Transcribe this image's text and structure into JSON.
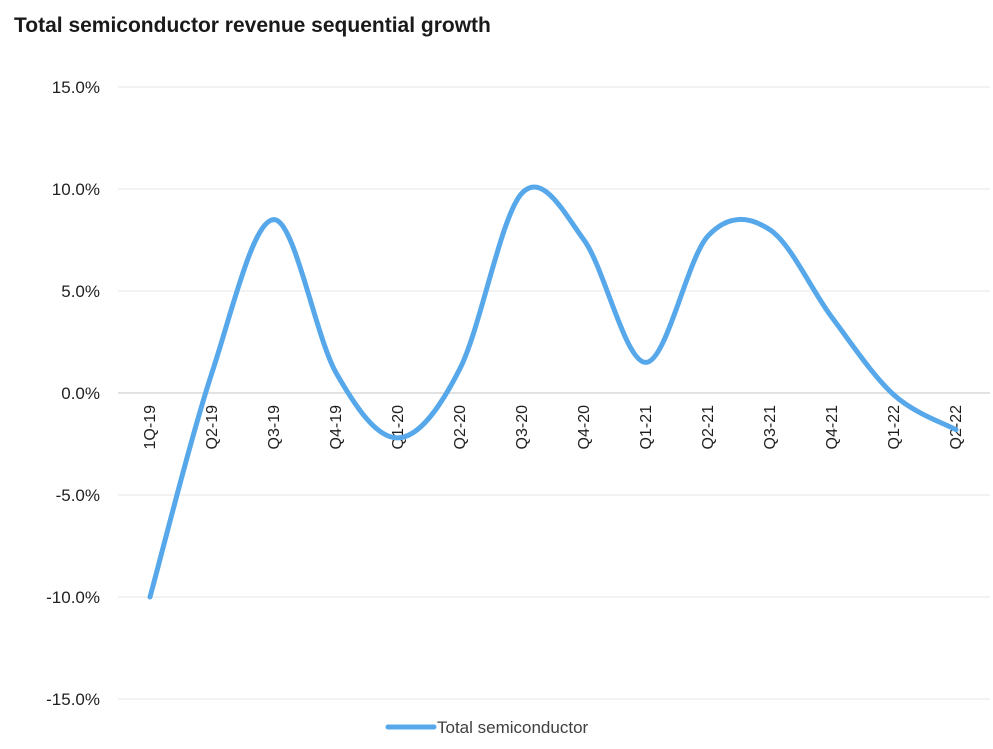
{
  "chart_data": {
    "type": "line",
    "title": "Total semiconductor revenue sequential growth",
    "xlabel": "",
    "ylabel": "",
    "categories": [
      "1Q-19",
      "Q2-19",
      "Q3-19",
      "Q4-19",
      "Q1-20",
      "Q2-20",
      "Q3-20",
      "Q4-20",
      "Q1-21",
      "Q2-21",
      "Q3-21",
      "Q4-21",
      "Q1-22",
      "Q2-22"
    ],
    "series": [
      {
        "name": "Total semiconductor",
        "values": [
          -10.0,
          1.0,
          8.5,
          1.0,
          -2.2,
          1.2,
          9.8,
          7.5,
          1.5,
          7.7,
          8.0,
          3.7,
          -0.1,
          -1.8
        ],
        "color": "#56A8EA"
      }
    ],
    "ylim": [
      -15,
      15
    ],
    "yticks": [
      15,
      10,
      5,
      0,
      -5,
      -10,
      -15
    ],
    "ytick_labels": [
      "15.0%",
      "10.0%",
      "5.0%",
      "0.0%",
      "-5.0%",
      "-10.0%",
      "-15.0%"
    ],
    "grid": true,
    "legend_position": "bottom",
    "gridline_color": "#e4e4e4",
    "axis_color": "#d0d0d0"
  }
}
